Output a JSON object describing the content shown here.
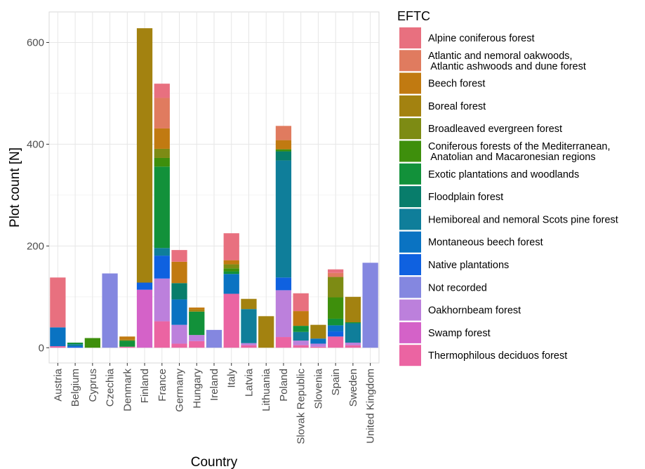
{
  "chart_data": {
    "type": "bar",
    "stacked": true,
    "title": "",
    "xlabel": "Country",
    "ylabel": "Plot count [N]",
    "ylim": [
      -30,
      660
    ],
    "yticks": [
      0,
      200,
      400,
      600
    ],
    "grid": true,
    "legend_position": "right",
    "legend_title": "EFTC",
    "categories": [
      "Austria",
      "Belgium",
      "Cyprus",
      "Czechia",
      "Denmark",
      "Finland",
      "France",
      "Germany",
      "Hungary",
      "Ireland",
      "Italy",
      "Latvia",
      "Lithuania",
      "Poland",
      "Slovak Republic",
      "Slovenia",
      "Spain",
      "Sweden",
      "United Kingdom"
    ],
    "series": [
      {
        "name": "Alpine coniferous forest",
        "color": "#E8707F",
        "values": [
          98,
          0,
          0,
          0,
          0,
          0,
          28,
          23,
          0,
          0,
          53,
          0,
          0,
          0,
          35,
          0,
          7,
          0,
          0
        ]
      },
      {
        "name": "Atlantic and nemoral oakwoods,\n Atlantic ashwoods and dune forest",
        "color": "#E07B5F",
        "values": [
          0,
          0,
          0,
          0,
          0,
          0,
          60,
          0,
          0,
          0,
          0,
          0,
          0,
          28,
          0,
          0,
          8,
          0,
          0
        ]
      },
      {
        "name": "Beech forest",
        "color": "#C17A11",
        "values": [
          0,
          0,
          0,
          0,
          6,
          0,
          40,
          42,
          4,
          0,
          8,
          0,
          0,
          18,
          29,
          0,
          0,
          0,
          0
        ]
      },
      {
        "name": "Boreal forest",
        "color": "#A38210",
        "values": [
          0,
          0,
          0,
          0,
          2,
          500,
          0,
          0,
          4,
          0,
          0,
          20,
          62,
          0,
          0,
          27,
          0,
          50,
          0
        ]
      },
      {
        "name": "Broadleaved evergreen forest",
        "color": "#7D8B14",
        "values": [
          0,
          0,
          0,
          0,
          0,
          0,
          18,
          0,
          0,
          0,
          8,
          0,
          0,
          0,
          0,
          0,
          40,
          0,
          0
        ]
      },
      {
        "name": "Coniferous forests of the Mediterranean,\n Anatolian and Macaronesian regions",
        "color": "#3E8F0C",
        "values": [
          0,
          0,
          19,
          0,
          0,
          0,
          17,
          0,
          0,
          0,
          6,
          0,
          0,
          4,
          0,
          0,
          42,
          0,
          0
        ]
      },
      {
        "name": "Exotic plantations and woodlands",
        "color": "#12913A",
        "values": [
          0,
          3,
          0,
          0,
          12,
          0,
          160,
          0,
          46,
          0,
          5,
          0,
          0,
          0,
          12,
          0,
          13,
          2,
          0
        ]
      },
      {
        "name": "Floodplain forest",
        "color": "#087D6B",
        "values": [
          0,
          0,
          0,
          0,
          0,
          0,
          0,
          32,
          0,
          0,
          0,
          0,
          0,
          18,
          0,
          0,
          0,
          0,
          0
        ]
      },
      {
        "name": "Hemiboreal and nemoral Scots pine forest",
        "color": "#0F7E9A",
        "values": [
          0,
          4,
          0,
          0,
          0,
          0,
          15,
          0,
          0,
          0,
          0,
          67,
          0,
          230,
          17,
          0,
          0,
          38,
          0
        ]
      },
      {
        "name": "Montaneous beech forest",
        "color": "#0A73C2",
        "values": [
          37,
          0,
          0,
          0,
          0,
          0,
          0,
          50,
          0,
          0,
          39,
          0,
          0,
          0,
          0,
          10,
          12,
          0,
          0
        ]
      },
      {
        "name": "Native plantations",
        "color": "#0F61E0",
        "values": [
          0,
          3,
          0,
          0,
          0,
          14,
          45,
          0,
          0,
          0,
          0,
          0,
          0,
          25,
          0,
          0,
          10,
          0,
          0
        ]
      },
      {
        "name": "Not recorded",
        "color": "#8487E0",
        "values": [
          0,
          0,
          0,
          146,
          0,
          0,
          0,
          0,
          0,
          35,
          0,
          0,
          0,
          0,
          0,
          0,
          0,
          0,
          167
        ]
      },
      {
        "name": "Oakhornbeam forest",
        "color": "#BC80DC",
        "values": [
          0,
          0,
          0,
          0,
          0,
          0,
          84,
          37,
          12,
          0,
          0,
          4,
          0,
          92,
          9,
          6,
          0,
          5,
          0
        ]
      },
      {
        "name": "Swamp forest",
        "color": "#D462C8",
        "values": [
          0,
          0,
          0,
          0,
          0,
          114,
          0,
          0,
          0,
          0,
          0,
          0,
          0,
          0,
          0,
          0,
          0,
          0,
          0
        ]
      },
      {
        "name": "Thermophilous deciduos forest",
        "color": "#EB64A2",
        "values": [
          3,
          0,
          0,
          0,
          2,
          0,
          52,
          8,
          13,
          0,
          106,
          5,
          0,
          21,
          5,
          2,
          22,
          5,
          0
        ]
      }
    ]
  }
}
